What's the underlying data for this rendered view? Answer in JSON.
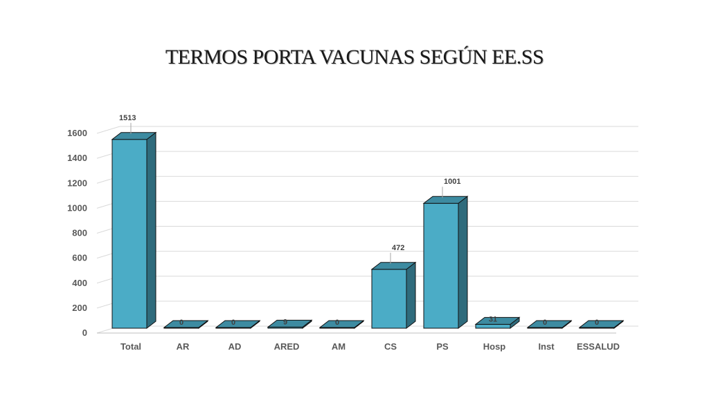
{
  "title": "TERMOS  PORTA VACUNAS  SEGÚN  EE.SS",
  "chart_data": {
    "type": "bar",
    "title": "TERMOS  PORTA VACUNAS  SEGÚN  EE.SS",
    "categories": [
      "Total",
      "AR",
      "AD",
      "ARED",
      "AM",
      "CS",
      "PS",
      "Hosp",
      "Inst",
      "ESSALUD"
    ],
    "values": [
      1513,
      0,
      0,
      9,
      0,
      472,
      1001,
      31,
      0,
      0
    ],
    "data_labels": [
      "1513",
      "0",
      "0",
      "9",
      "0",
      "472",
      "1001",
      "31",
      "0",
      "0"
    ],
    "y_ticks": [
      "0",
      "200",
      "400",
      "600",
      "800",
      "1000",
      "1200",
      "1400",
      "1600"
    ],
    "ylim": [
      0,
      1600
    ],
    "xlabel": "",
    "ylabel": "",
    "grid": true,
    "legend": "none",
    "style": "3d-column",
    "colors": {
      "front": "#4bacc6",
      "side": "#2f6b7c",
      "top": "#3d8ba1",
      "outline": "#111111",
      "grid": "#d9d9d9"
    }
  }
}
